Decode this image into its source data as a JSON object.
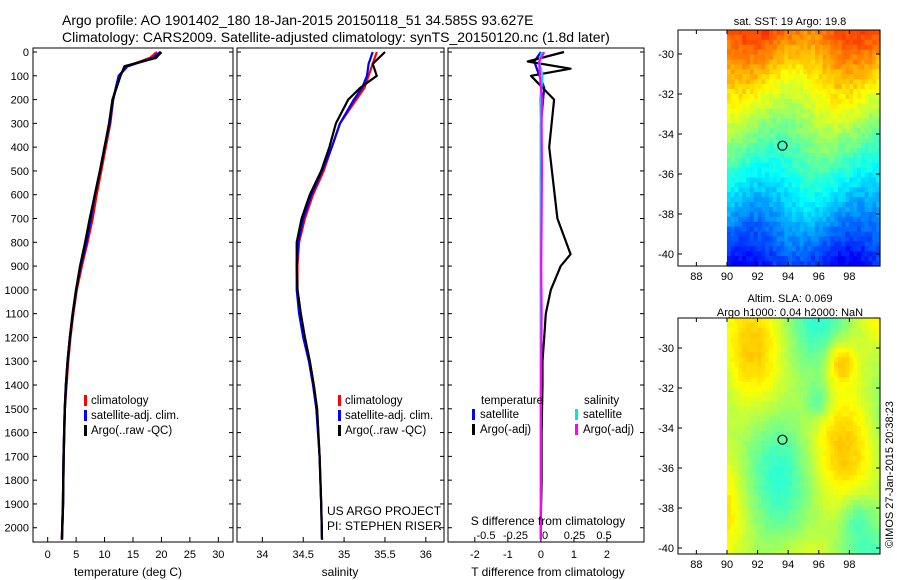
{
  "header": {
    "line1": "Argo profile: AO 1901402_180 18-Jan-2015 20150118_51 34.585S 93.627E",
    "line2": "Climatology: CARS2009. Satellite-adjusted climatology: synTS_20150120.nc (1.8d later)"
  },
  "credit": "©IMOS 27-Jan-2015 20:38:23",
  "colors": {
    "climatology": "#ff0000",
    "satellite": "#0000ff",
    "argo": "#000000",
    "sal_satellite": "#00e5e5",
    "sal_argo": "#ff00ff",
    "marker": "#000000"
  },
  "chart_data": [
    {
      "id": "temperature",
      "type": "line",
      "xlabel": "temperature (deg C)",
      "xlim": [
        -1,
        31
      ],
      "xticks": [
        0,
        5,
        10,
        15,
        20,
        25,
        30
      ],
      "ylim": [
        2060,
        0
      ],
      "yticks": [
        0,
        100,
        200,
        300,
        400,
        500,
        600,
        700,
        800,
        900,
        1000,
        1100,
        1200,
        1300,
        1400,
        1500,
        1600,
        1700,
        1800,
        1900,
        2000
      ],
      "legend": {
        "position": "center-left",
        "entries": [
          "climatology",
          "satellite-adj. clim.",
          "Argo(..raw -QC)"
        ]
      },
      "series": [
        {
          "name": "climatology",
          "color": "#ff0000",
          "x": [
            19.2,
            18.0,
            14.0,
            12.5,
            11.5,
            11.0,
            10.2,
            9.4,
            8.6,
            7.9,
            7.0,
            6.0,
            5.1,
            4.5,
            4.0,
            3.6,
            3.3,
            3.0,
            2.8,
            2.7,
            2.5
          ],
          "y": [
            0,
            25,
            60,
            100,
            200,
            300,
            400,
            500,
            600,
            700,
            800,
            900,
            1000,
            1100,
            1200,
            1300,
            1400,
            1500,
            1700,
            1900,
            2050
          ]
        },
        {
          "name": "satellite-adj. clim.",
          "color": "#0000ff",
          "x": [
            19.8,
            18.5,
            14.0,
            12.5,
            11.5,
            10.9,
            10.0,
            9.2,
            8.3,
            7.6,
            6.8,
            5.8,
            5.0,
            4.4,
            3.9,
            3.5,
            3.2,
            3.0,
            2.8,
            2.7,
            2.5
          ],
          "y": [
            0,
            25,
            60,
            100,
            200,
            300,
            400,
            500,
            600,
            700,
            800,
            900,
            1000,
            1100,
            1200,
            1300,
            1400,
            1500,
            1700,
            1900,
            2050
          ]
        },
        {
          "name": "Argo(..raw -QC)",
          "color": "#000000",
          "x": [
            20.0,
            19.0,
            13.5,
            12.8,
            11.4,
            10.8,
            10.0,
            9.2,
            8.3,
            7.4,
            6.6,
            5.7,
            5.0,
            4.4,
            3.9,
            3.5,
            3.2,
            3.0,
            2.8,
            2.7,
            2.5
          ],
          "y": [
            0,
            25,
            60,
            100,
            200,
            300,
            400,
            500,
            600,
            700,
            800,
            900,
            1000,
            1100,
            1200,
            1300,
            1400,
            1500,
            1700,
            1900,
            2050
          ]
        }
      ]
    },
    {
      "id": "salinity",
      "type": "line",
      "xlabel": "salinity",
      "xlim": [
        33.8,
        36.1
      ],
      "xticks": [
        34,
        34.5,
        35,
        35.5,
        36
      ],
      "ylim": [
        2060,
        0
      ],
      "legend": {
        "position": "center-right",
        "entries": [
          "climatology",
          "satellite-adj. clim.",
          "Argo(..raw -QC)"
        ]
      },
      "annotations": [
        "US ARGO PROJECT",
        "PI: STEPHEN RISER"
      ],
      "series": [
        {
          "name": "climatology",
          "color": "#ff0000",
          "x": [
            35.4,
            35.35,
            35.3,
            35.25,
            35.15,
            34.95,
            34.85,
            34.75,
            34.62,
            34.52,
            34.45,
            34.43,
            34.43,
            34.47,
            34.52,
            34.58,
            34.63,
            34.67,
            34.7,
            34.72,
            34.73
          ],
          "y": [
            0,
            50,
            100,
            150,
            200,
            300,
            400,
            500,
            600,
            700,
            800,
            900,
            1000,
            1100,
            1200,
            1300,
            1400,
            1500,
            1700,
            1900,
            2050
          ]
        },
        {
          "name": "satellite-adj. clim.",
          "color": "#0000ff",
          "x": [
            35.35,
            35.3,
            35.28,
            35.22,
            35.12,
            34.95,
            34.85,
            34.73,
            34.6,
            34.5,
            34.44,
            34.42,
            34.42,
            34.45,
            34.5,
            34.57,
            34.62,
            34.66,
            34.7,
            34.72,
            34.73
          ],
          "y": [
            0,
            50,
            100,
            150,
            200,
            300,
            400,
            500,
            600,
            700,
            800,
            900,
            1000,
            1100,
            1200,
            1300,
            1400,
            1500,
            1700,
            1900,
            2050
          ]
        },
        {
          "name": "Argo(..raw -QC)",
          "color": "#000000",
          "x": [
            35.5,
            35.35,
            35.4,
            35.2,
            35.05,
            34.9,
            34.82,
            34.72,
            34.58,
            34.48,
            34.42,
            34.42,
            34.43,
            34.47,
            34.52,
            34.58,
            34.63,
            34.67,
            34.7,
            34.72,
            34.73
          ],
          "y": [
            0,
            50,
            100,
            150,
            200,
            300,
            400,
            500,
            600,
            700,
            800,
            900,
            1000,
            1100,
            1200,
            1300,
            1400,
            1500,
            1700,
            1900,
            2050
          ]
        }
      ]
    },
    {
      "id": "difference",
      "type": "line",
      "xlabel": "T difference from climatology",
      "xlim": [
        -2.6,
        3.0
      ],
      "xticks": [
        -2,
        -1,
        0,
        1,
        2
      ],
      "top_xlabel": "S difference from climatology",
      "top_ticks": [
        {
          "value": -0.5,
          "label": "-0.5"
        },
        {
          "value": -0.25,
          "label": "-0.25"
        },
        {
          "value": 0,
          "label": "0"
        },
        {
          "value": 0.25,
          "label": "0.25"
        },
        {
          "value": 0.5,
          "label": "0.5"
        }
      ],
      "ylim": [
        2060,
        0
      ],
      "legend": {
        "position": "center",
        "temperature_title": "temperature",
        "salinity_title": "salinity",
        "temperature_entries": [
          "satellite",
          "Argo(-adj)"
        ],
        "salinity_entries": [
          "satellite",
          "Argo(-adj)"
        ]
      },
      "series": [
        {
          "name": "T satellite",
          "color": "#0000ff",
          "x": [
            0,
            -0.2,
            -0.1,
            0.1,
            0,
            0,
            0,
            0,
            0,
            0,
            0,
            0,
            0,
            0,
            0
          ],
          "y": [
            0,
            40,
            80,
            150,
            300,
            500,
            800,
            1000,
            1200,
            1400,
            1500,
            1600,
            1700,
            1900,
            2050
          ]
        },
        {
          "name": "T Argo(-adj)",
          "color": "#000000",
          "x": [
            0.7,
            -0.4,
            0.9,
            -0.3,
            0.4,
            0.25,
            0.5,
            0.9,
            0.6,
            0.3,
            0.15,
            0.1,
            0.05,
            0.05,
            0.02,
            0.02,
            0,
            0
          ],
          "y": [
            0,
            40,
            70,
            100,
            200,
            400,
            700,
            850,
            900,
            1000,
            1100,
            1200,
            1300,
            1400,
            1600,
            1800,
            1950,
            2050
          ]
        },
        {
          "name": "S satellite",
          "color": "#00e5e5",
          "x": [
            0.03,
            -0.05,
            0.05,
            -0.02,
            0,
            0.01,
            0,
            0,
            0,
            0,
            0,
            0
          ],
          "y": [
            0,
            40,
            100,
            200,
            300,
            500,
            700,
            1000,
            1300,
            1600,
            1900,
            2050
          ]
        },
        {
          "name": "S Argo(-adj)",
          "color": "#ff00ff",
          "x": [
            0.1,
            -0.05,
            -0.03,
            0.03,
            0.02,
            0.03,
            0.02,
            0.01,
            0.02,
            0.01,
            0,
            0,
            0
          ],
          "y": [
            0,
            40,
            100,
            200,
            300,
            500,
            700,
            900,
            1100,
            1300,
            1500,
            1800,
            2050
          ]
        }
      ]
    },
    {
      "id": "sst_map",
      "type": "heatmap",
      "title": "sat. SST: 19 Argo: 19.8",
      "xlim": [
        86.8,
        100
      ],
      "ylim": [
        -40.6,
        -28.8
      ],
      "xticks": [
        88,
        90,
        92,
        94,
        96,
        98
      ],
      "yticks": [
        -30,
        -32,
        -34,
        -36,
        -38,
        -40
      ],
      "data_xlim": [
        90,
        100
      ],
      "profile_position": {
        "lon": 93.627,
        "lat": -34.585
      }
    },
    {
      "id": "sla_map",
      "type": "heatmap",
      "title": "Altim. SLA: 0.069",
      "subtitle": "Argo h1000: 0.04 h2000: NaN",
      "xlim": [
        86.8,
        100
      ],
      "ylim": [
        -40.3,
        -28.5
      ],
      "xticks": [
        88,
        90,
        92,
        94,
        96,
        98
      ],
      "yticks": [
        -30,
        -32,
        -34,
        -36,
        -38,
        -40
      ],
      "data_xlim": [
        90,
        100
      ],
      "profile_position": {
        "lon": 93.627,
        "lat": -34.585
      }
    }
  ]
}
